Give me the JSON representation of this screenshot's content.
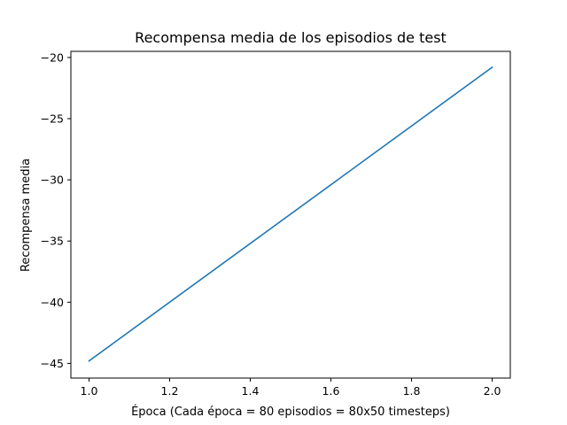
{
  "chart_data": {
    "type": "line",
    "title": "Recompensa media de los episodios de test",
    "xlabel": "Época (Cada época = 80 episodios = 80x50 timesteps)",
    "ylabel": "Recompensa media",
    "xlim": [
      0.955,
      2.045
    ],
    "ylim": [
      -46.2,
      -19.5
    ],
    "xticks": [
      1.0,
      1.2,
      1.4,
      1.6,
      1.8,
      2.0
    ],
    "xtick_labels": [
      "1.0",
      "1.2",
      "1.4",
      "1.6",
      "1.8",
      "2.0"
    ],
    "yticks": [
      -45,
      -40,
      -35,
      -30,
      -25,
      -20
    ],
    "ytick_labels": [
      "−45",
      "−40",
      "−35",
      "−30",
      "−25",
      "−20"
    ],
    "grid": false,
    "legend": "none",
    "series": [
      {
        "color": "#1f77b4",
        "x": [
          1.0,
          2.0
        ],
        "y": [
          -44.8,
          -20.8
        ]
      }
    ]
  }
}
